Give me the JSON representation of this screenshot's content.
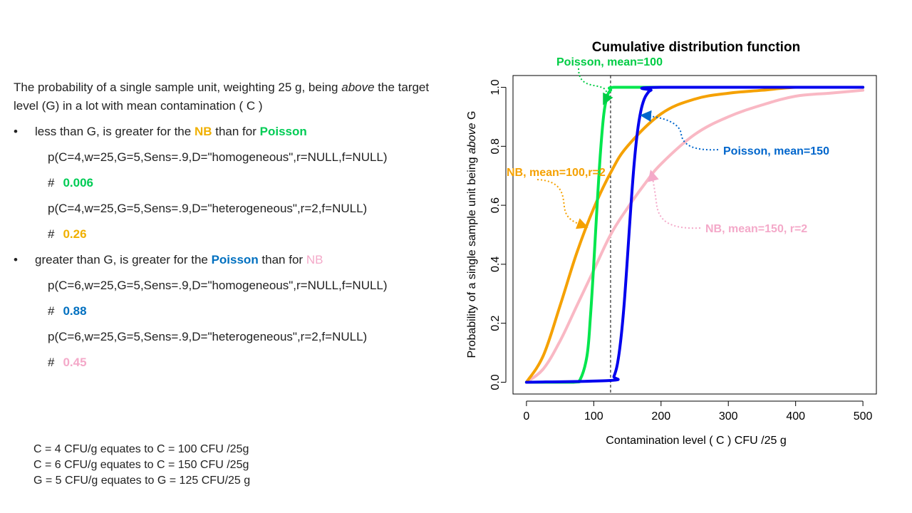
{
  "text": {
    "intro_1": "The probability of a single sample unit, weighting 25 g,  being ",
    "intro_em": "above",
    "intro_2": "  the target level (G) in a lot with mean contamination ( C )",
    "bullet1_pre": "less than G, is greater for the ",
    "bullet1_hl1": "NB",
    "bullet1_mid": " than for ",
    "bullet1_hl2": "Poisson",
    "code1": "p(C=4,w=25,G=5,Sens=.9,D=\"homogeneous\",r=NULL,f=NULL)",
    "res1": "0.006",
    "code2": "p(C=4,w=25,G=5,Sens=.9,D=\"heterogeneous\",r=2,f=NULL)",
    "res2": "0.26",
    "bullet2_pre": "greater than G, is greater for the ",
    "bullet2_hl1": "Poisson",
    "bullet2_mid": " than for ",
    "bullet2_hl2": "NB",
    "code3": "p(C=6,w=25,G=5,Sens=.9,D=\"homogeneous\",r=NULL,f=NULL)",
    "res3": "0.88",
    "code4": "p(C=6,w=25,G=5,Sens=.9,D=\"heterogeneous\",r=2,f=NULL)",
    "res4": "0.45",
    "hash": "#",
    "bullet_glyph": "•",
    "note1": "C = 4 CFU/g equates to C = 100 CFU /25g",
    "note2": "C = 6 CFU/g equates to C = 150 CFU /25g",
    "note3": "G = 5 CFU/g equates to G = 125 CFU/25 g"
  },
  "colors": {
    "poisson100": "#00e64d",
    "poisson150": "#0000ee",
    "nb100": "#f5a100",
    "nb150": "#f9b8c4",
    "text_green": "#00cc55",
    "text_orange": "#f0b000",
    "text_blue": "#0070c0",
    "text_pink": "#f4a9c9",
    "anno_poisson100": "#00cc44",
    "anno_poisson150": "#0066cc",
    "anno_nb100": "#f5a100",
    "anno_nb150": "#f4a9c9"
  },
  "chart_data": {
    "type": "line",
    "title": "Cumulative distribution function",
    "xlabel": "Contamination level ( C )  CFU /25 g",
    "ylabel_pre": "Probability of a single sample unit being ",
    "ylabel_em": "above",
    "ylabel_post": " G",
    "xlim": [
      -20,
      520
    ],
    "ylim": [
      -0.04,
      1.04
    ],
    "x_ticks": [
      0,
      100,
      200,
      300,
      400,
      500
    ],
    "y_ticks": [
      0.0,
      0.2,
      0.4,
      0.6,
      0.8,
      1.0
    ],
    "x_tick_labels": [
      "0",
      "100",
      "200",
      "300",
      "400",
      "500"
    ],
    "y_tick_labels": [
      "0.0",
      "0.2",
      "0.4",
      "0.6",
      "0.8",
      "1.0"
    ],
    "vline_x": 125,
    "grid": false,
    "series": [
      {
        "id": "poisson100",
        "x": [
          0,
          70,
          80,
          90,
          95,
          100,
          105,
          110,
          115,
          120,
          125,
          130,
          200,
          500
        ],
        "y": [
          0,
          0,
          0.01,
          0.09,
          0.22,
          0.4,
          0.6,
          0.78,
          0.91,
          0.97,
          0.99,
          1.0,
          1.0,
          1.0
        ]
      },
      {
        "id": "poisson150",
        "x": [
          0,
          125,
          130,
          135,
          140,
          145,
          150,
          155,
          160,
          165,
          170,
          175,
          180,
          185,
          200,
          500
        ],
        "y": [
          0,
          0.006,
          0.02,
          0.06,
          0.14,
          0.26,
          0.42,
          0.59,
          0.74,
          0.85,
          0.92,
          0.96,
          0.98,
          0.99,
          1.0,
          1.0
        ]
      },
      {
        "id": "nb100",
        "x": [
          0,
          25,
          50,
          75,
          100,
          125,
          150,
          200,
          250,
          300,
          350,
          400,
          450,
          500
        ],
        "y": [
          0,
          0.09,
          0.26,
          0.44,
          0.59,
          0.71,
          0.8,
          0.91,
          0.96,
          0.98,
          0.99,
          1.0,
          1.0,
          1.0
        ]
      },
      {
        "id": "nb150",
        "x": [
          0,
          25,
          50,
          75,
          100,
          125,
          150,
          175,
          200,
          250,
          300,
          350,
          400,
          450,
          500
        ],
        "y": [
          0,
          0.045,
          0.14,
          0.26,
          0.38,
          0.5,
          0.59,
          0.67,
          0.74,
          0.84,
          0.9,
          0.94,
          0.97,
          0.98,
          0.99
        ]
      }
    ],
    "annotations": {
      "poisson100": "Poisson,  mean=100",
      "poisson150": "Poisson,  mean=150",
      "nb100": "NB, mean=100,r=2",
      "nb150": "NB, mean=150,  r=2"
    }
  }
}
